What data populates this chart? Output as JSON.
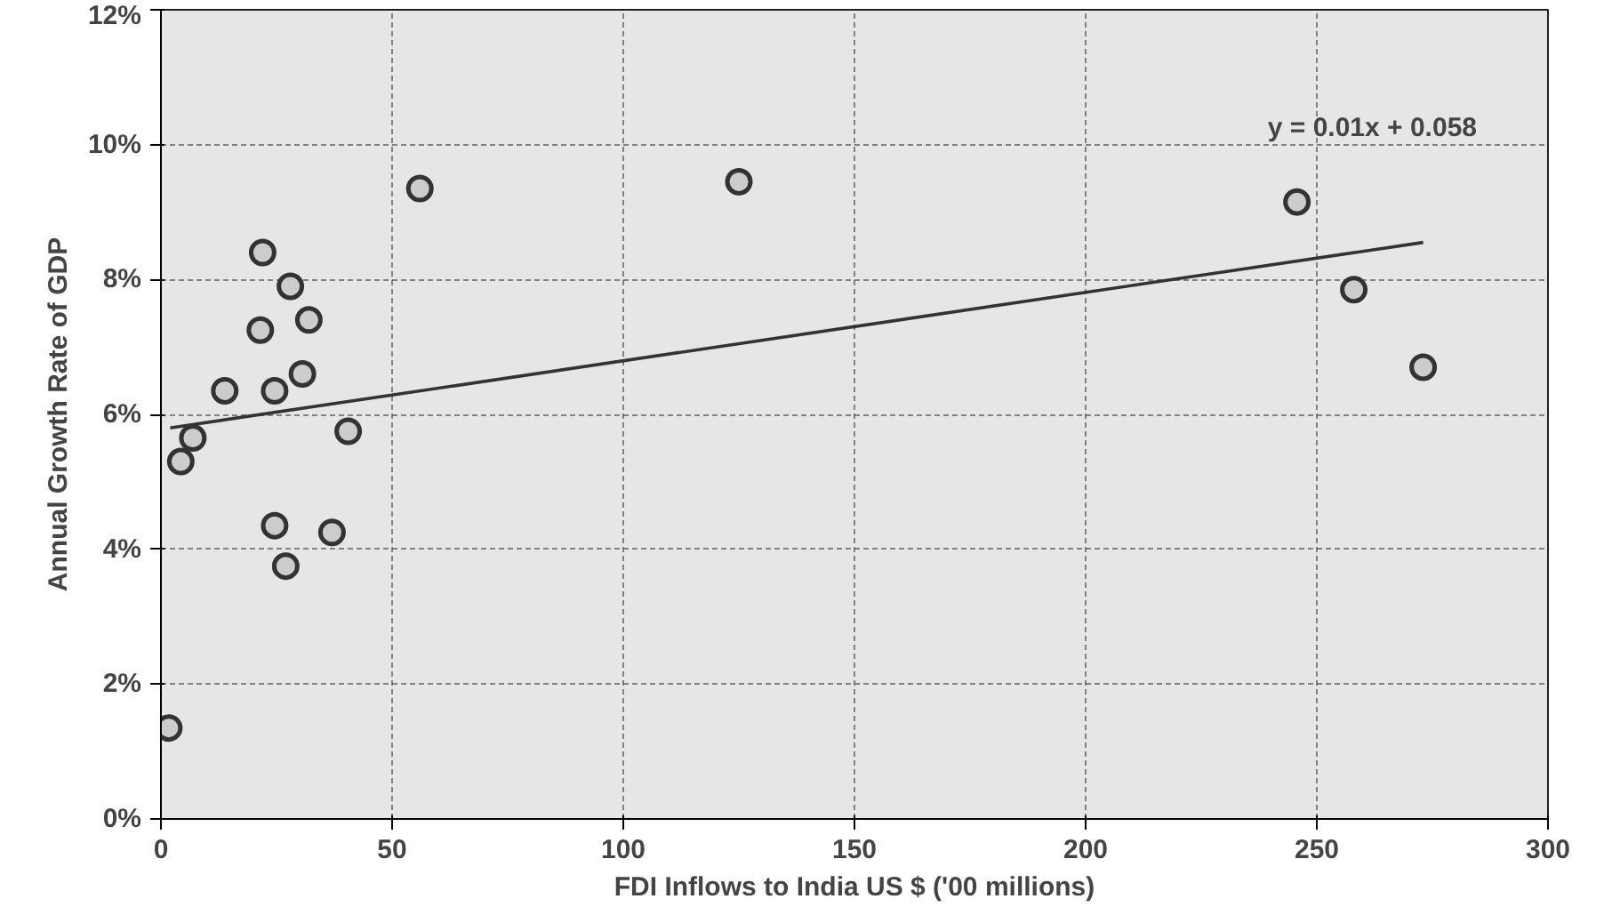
{
  "chart_data": {
    "type": "scatter",
    "xlabel": "FDI Inflows to India US $ ('00 millions)",
    "ylabel": "Annual Growth Rate of GDP",
    "series": [
      {
        "color": "#333333",
        "marker": "circle",
        "x": [
          22,
          28,
          32,
          21.5,
          30.6,
          13.8,
          24.6,
          6.9,
          4.3,
          40.5,
          24.6,
          37,
          27,
          1.7,
          56,
          125,
          245.7,
          258,
          273
        ],
        "values": [
          8.4,
          7.9,
          7.4,
          7.25,
          6.6,
          6.35,
          6.35,
          5.65,
          5.3,
          5.75,
          4.35,
          4.25,
          3.75,
          1.35,
          9.35,
          9.45,
          9.15,
          7.85,
          6.7
        ]
      },
      {
        "type": "line",
        "color": "#333333",
        "x": [
          2,
          273
        ],
        "values": [
          5.8,
          8.55
        ]
      }
    ],
    "annotations": [
      "y = 0.01x + 0.058"
    ],
    "xlim": [
      0,
      300
    ],
    "xticks": [
      0,
      50,
      100,
      150,
      200,
      250,
      300
    ],
    "ylim": [
      0,
      12
    ],
    "yticks": [
      {
        "value": 0,
        "label": "0%"
      },
      {
        "value": 2,
        "label": "2%"
      },
      {
        "value": 4,
        "label": "4%"
      },
      {
        "value": 6,
        "label": "6%"
      },
      {
        "value": 8,
        "label": "8%"
      },
      {
        "value": 10,
        "label": "10%"
      },
      {
        "value": 12,
        "label": "12%"
      }
    ],
    "grid": true
  }
}
